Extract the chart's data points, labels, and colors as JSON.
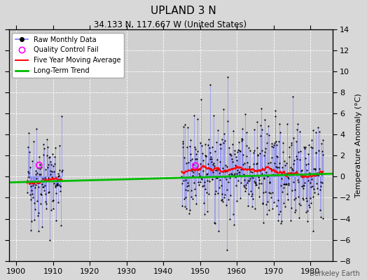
{
  "title": "UPLAND 3 N",
  "subtitle": "34.133 N, 117.667 W (United States)",
  "ylabel": "Temperature Anomaly (°C)",
  "watermark": "Berkeley Earth",
  "xlim": [
    1898,
    1986
  ],
  "ylim": [
    -8,
    14
  ],
  "yticks": [
    -8,
    -6,
    -4,
    -2,
    0,
    2,
    4,
    6,
    8,
    10,
    12,
    14
  ],
  "xticks": [
    1900,
    1910,
    1920,
    1930,
    1940,
    1950,
    1960,
    1970,
    1980
  ],
  "bg_color": "#d8d8d8",
  "plot_bg_color": "#d0d0d0",
  "grid_color": "#ffffff",
  "raw_line_color": "#7777ff",
  "raw_dot_color": "#000000",
  "ma_color": "#ff0000",
  "trend_color": "#00bb00",
  "qc_color": "#ff00ff",
  "segment1_start": 1903.0,
  "segment1_end": 1912.5,
  "segment2_start": 1945.0,
  "segment2_end": 1983.5,
  "trend_x": [
    1898,
    1986
  ],
  "trend_y": [
    -0.55,
    0.28
  ],
  "qc_points": [
    [
      1906.25,
      1.1
    ],
    [
      1948.75,
      1.05
    ]
  ],
  "seed": 42,
  "title_fontsize": 11,
  "subtitle_fontsize": 8.5,
  "tick_fontsize": 8,
  "ylabel_fontsize": 8
}
